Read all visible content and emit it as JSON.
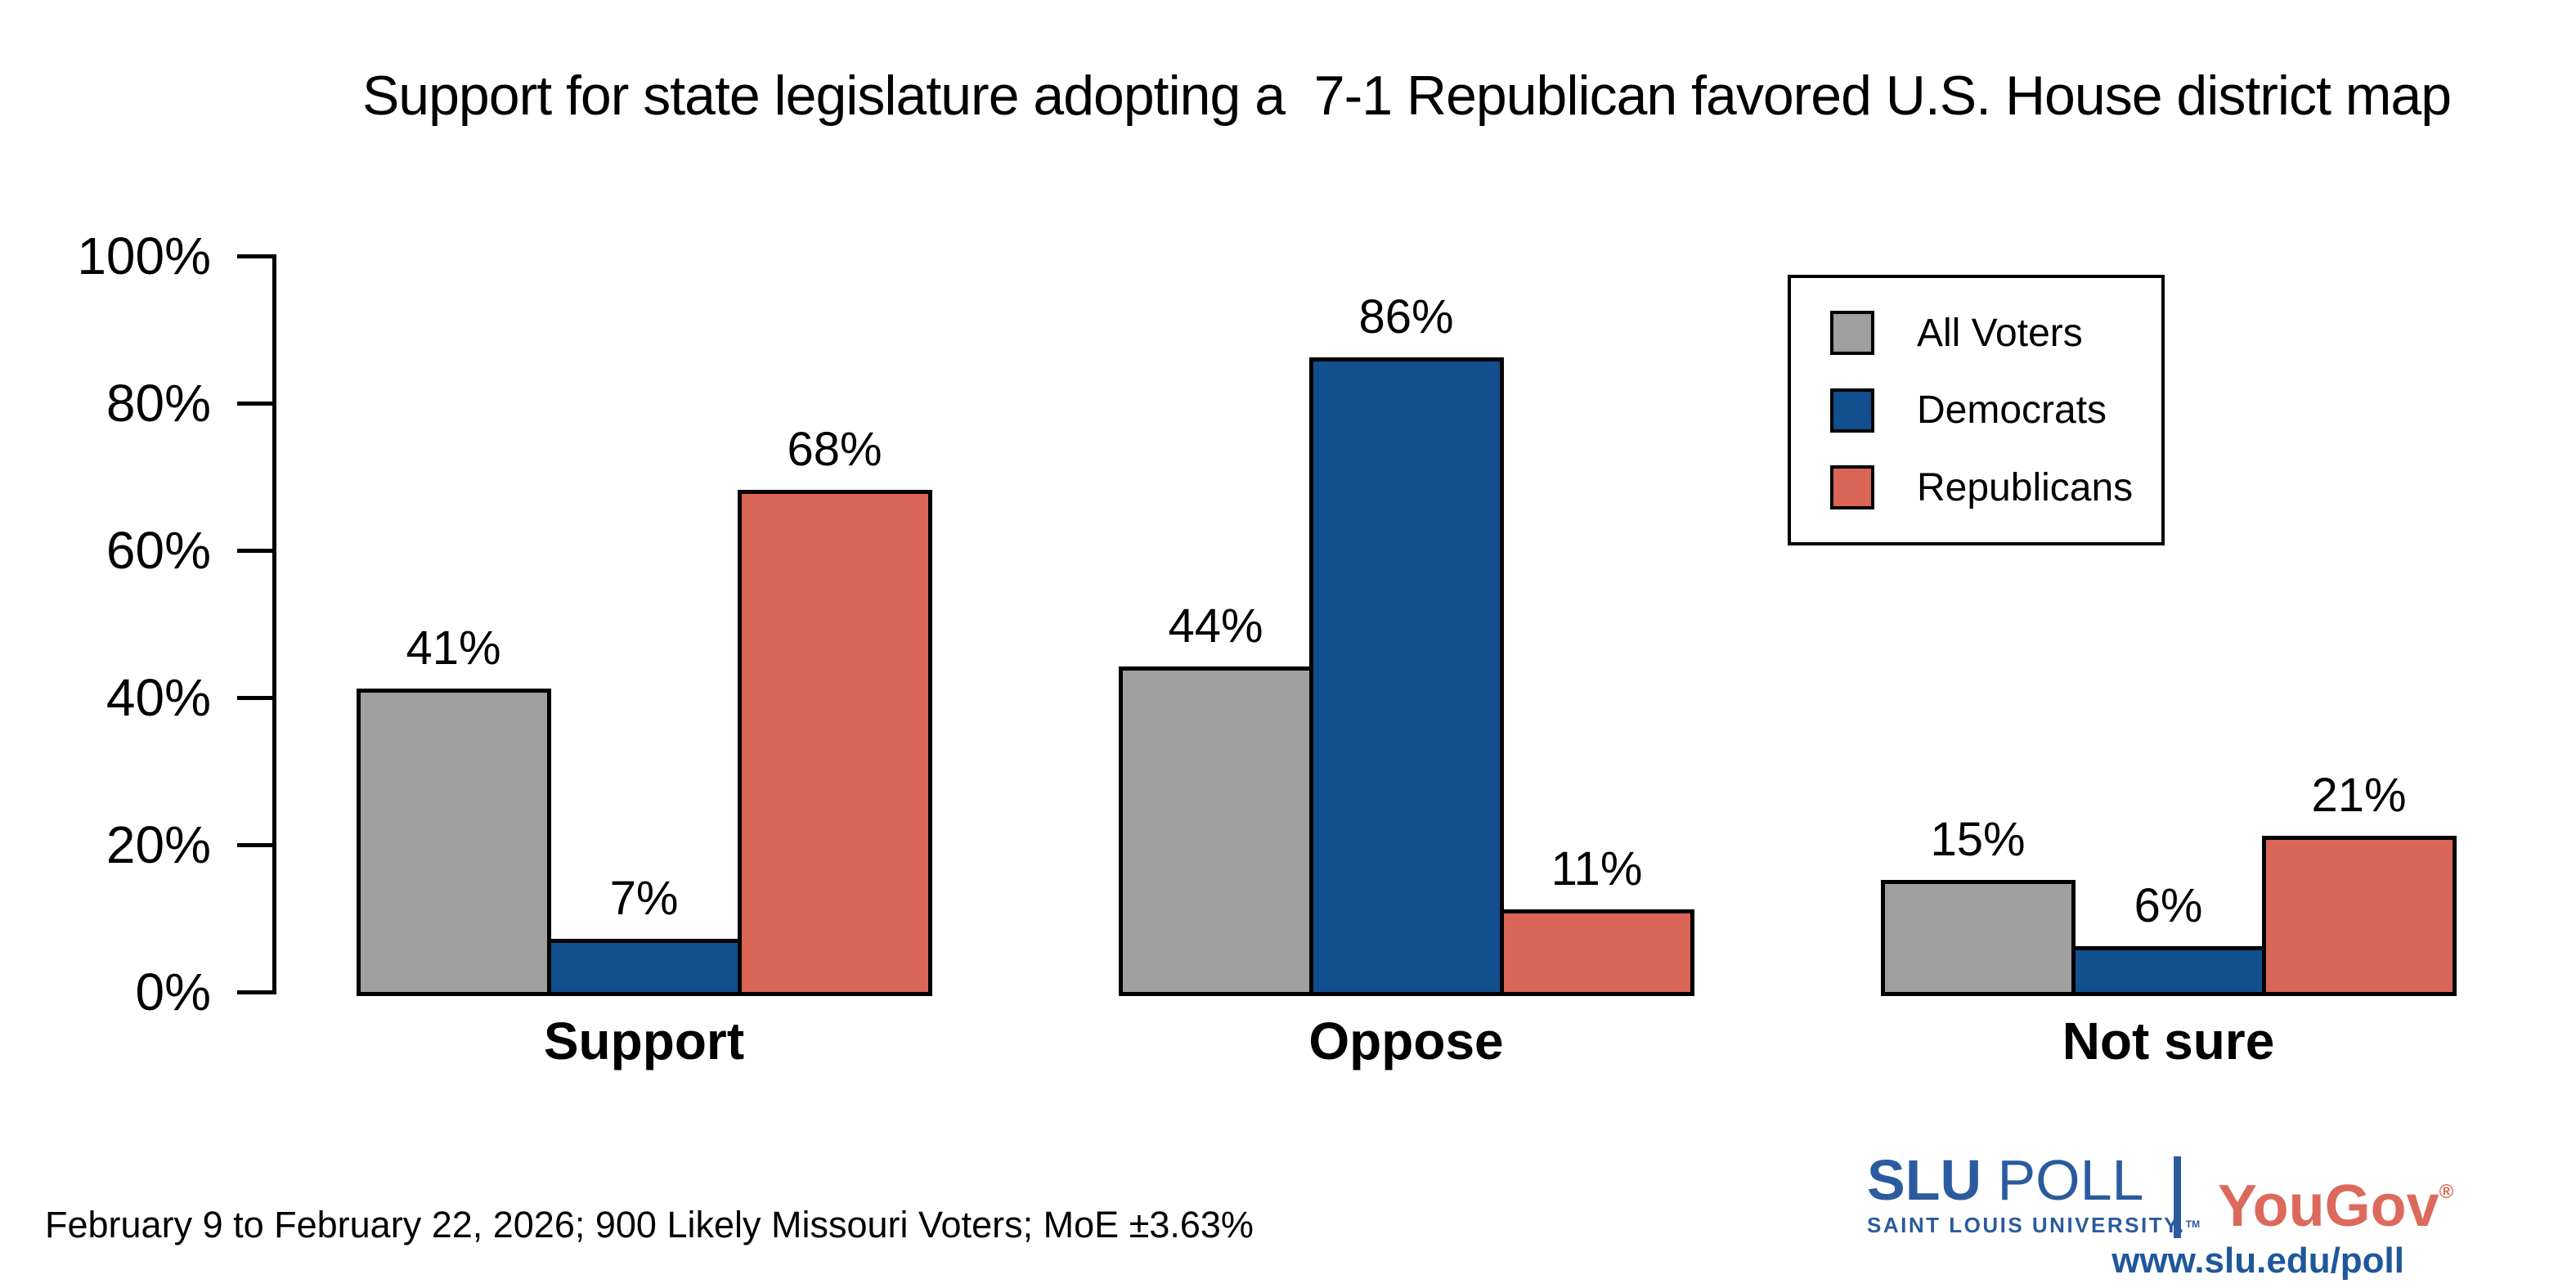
{
  "title": "Support for state legislature adopting a  7-1 Republican favored U.S. House district map",
  "footnote": "February 9 to February 22, 2026; 900 Likely Missouri Voters; MoE ±3.63%",
  "colors": {
    "all_voters": "#9f9f9f",
    "democrats": "#114f8e",
    "republicans": "#d96557",
    "axis": "#000000",
    "slu_blue": "#2b5b9e",
    "yougov_red": "#dc6a5c",
    "url_blue": "#1f579b"
  },
  "chart_data": {
    "type": "bar",
    "categories": [
      "Support",
      "Oppose",
      "Not sure"
    ],
    "series": [
      {
        "name": "All Voters",
        "color": "#9f9f9f",
        "values": [
          41,
          44,
          15
        ]
      },
      {
        "name": "Democrats",
        "color": "#114f8e",
        "values": [
          7,
          86,
          6
        ]
      },
      {
        "name": "Republicans",
        "color": "#d96557",
        "values": [
          68,
          11,
          21
        ]
      }
    ],
    "value_label_suffix": "%",
    "title": "Support for state legislature adopting a  7-1 Republican favored U.S. House district map",
    "xlabel": "",
    "ylabel": "",
    "ylim": [
      0,
      100
    ],
    "grid": false,
    "axis_ticks": [
      {
        "value": 0,
        "label": "0%"
      },
      {
        "value": 20,
        "label": "20%"
      },
      {
        "value": 40,
        "label": "40%"
      },
      {
        "value": 60,
        "label": "60%"
      },
      {
        "value": 80,
        "label": "80%"
      },
      {
        "value": 100,
        "label": "100%"
      }
    ],
    "legend_position": "top-right"
  },
  "legend": {
    "items": [
      {
        "label": "All Voters",
        "color": "#9f9f9f"
      },
      {
        "label": "Democrats",
        "color": "#114f8e"
      },
      {
        "label": "Republicans",
        "color": "#d96557"
      }
    ]
  },
  "branding": {
    "slu_primary_bold": "SLU",
    "slu_primary_rest": " POLL",
    "slu_secondary": "SAINT LOUIS UNIVERSITY.",
    "slu_tm": "TM",
    "yougov": "YouGov",
    "yougov_reg": "®",
    "url": "www.slu.edu/poll"
  }
}
